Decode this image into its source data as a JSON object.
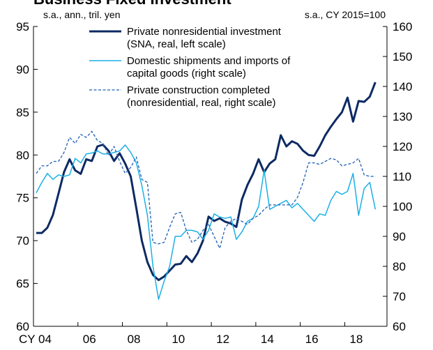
{
  "chart_data": {
    "type": "line",
    "title": "Business Fixed Investment",
    "y_label": "s.a., ann., tril. yen",
    "y2_label": "s.a., CY 2015=100",
    "x": [
      2004.125,
      2004.375,
      2004.625,
      2004.875,
      2005.125,
      2005.375,
      2005.625,
      2005.875,
      2006.125,
      2006.375,
      2006.625,
      2006.875,
      2007.125,
      2007.375,
      2007.625,
      2007.875,
      2008.125,
      2008.375,
      2008.625,
      2008.875,
      2009.125,
      2009.375,
      2009.625,
      2009.875,
      2010.125,
      2010.375,
      2010.625,
      2010.875,
      2011.125,
      2011.375,
      2011.625,
      2011.875,
      2012.125,
      2012.375,
      2012.625,
      2012.875,
      2013.125,
      2013.375,
      2013.625,
      2013.875,
      2014.125,
      2014.375,
      2014.625,
      2014.875,
      2015.125,
      2015.375,
      2015.625,
      2015.875,
      2016.125,
      2016.375,
      2016.625,
      2016.875,
      2017.125,
      2017.375,
      2017.625,
      2017.875,
      2018.125,
      2018.375,
      2018.625,
      2018.875,
      2019.125,
      2019.375
    ],
    "xlim": [
      2004.0,
      2019.9
    ],
    "xticks": [
      {
        "value": 2004,
        "label": "CY 04"
      },
      {
        "value": 2006,
        "label": "06"
      },
      {
        "value": 2008,
        "label": "08"
      },
      {
        "value": 2010,
        "label": "10"
      },
      {
        "value": 2012,
        "label": "12"
      },
      {
        "value": 2014,
        "label": "14"
      },
      {
        "value": 2016,
        "label": "16"
      },
      {
        "value": 2018,
        "label": "18"
      }
    ],
    "ylim": [
      60,
      95
    ],
    "yticks": [
      60,
      65,
      70,
      75,
      80,
      85,
      90,
      95
    ],
    "y2lim": [
      60,
      160
    ],
    "y2ticks": [
      60,
      70,
      80,
      90,
      100,
      110,
      120,
      130,
      140,
      150,
      160
    ],
    "series": [
      {
        "name": "Private nonresidential investment (SNA, real, left scale)",
        "color": "#0d2a63",
        "style": "solid",
        "width": 3,
        "values": [
          70.9,
          70.9,
          71.5,
          73,
          75.5,
          78,
          79.5,
          78.2,
          77.8,
          79.5,
          79.3,
          81,
          81.2,
          80.5,
          79.3,
          80.2,
          79,
          77.5,
          73.8,
          70,
          67.5,
          66,
          65.4,
          65.8,
          66.5,
          67.2,
          67.3,
          68.2,
          67.5,
          68.5,
          70,
          72.8,
          72.3,
          72.6,
          72.2,
          72,
          71.6,
          74.8,
          76.5,
          77.8,
          79.5,
          78,
          79,
          79.5,
          82.3,
          81,
          81.6,
          81.3,
          80.5,
          80,
          79.9,
          81,
          82.3,
          83.3,
          84.2,
          85,
          86.7,
          83.9,
          86.3,
          86.2,
          86.8,
          88.5
        ]
      },
      {
        "name": "Domestic shipments and imports of capital goods (right scale)",
        "color": "#1ab0e6",
        "style": "solid",
        "width": 1.5,
        "axis": "y2",
        "values": [
          104.5,
          108,
          111,
          109,
          110.5,
          110,
          110.5,
          116,
          114.5,
          117.5,
          117.8,
          118.5,
          117.5,
          117.5,
          118,
          118.5,
          120.5,
          118,
          114.5,
          107,
          97,
          80,
          69,
          75,
          80,
          90,
          90,
          92,
          92,
          91.5,
          89,
          92,
          97.5,
          96.5,
          96,
          96.5,
          89,
          91.5,
          95,
          96,
          100,
          112,
          99,
          100,
          101,
          102,
          99.5,
          101,
          99,
          97,
          95,
          97.5,
          97,
          102,
          105,
          104,
          105,
          111,
          97,
          106,
          108,
          99
        ]
      },
      {
        "name": "Private construction completed (nonresidential, real, right scale)",
        "color": "#1f5fb5",
        "style": "dashed",
        "width": 1.3,
        "axis": "y2",
        "values": [
          111,
          113.5,
          113.5,
          115,
          115,
          118,
          123,
          121,
          124,
          123,
          125,
          122,
          121,
          117,
          120,
          115,
          111,
          113,
          116.5,
          109,
          108,
          88,
          87.5,
          88,
          93,
          97.5,
          98,
          92,
          88,
          89,
          92,
          94,
          90,
          86,
          93,
          95,
          96,
          95,
          94,
          96,
          97,
          99,
          100.5,
          100.5,
          100.5,
          100.5,
          100.5,
          103,
          108,
          114.5,
          114.5,
          114,
          115,
          116,
          115.5,
          113.5,
          114,
          114.5,
          116,
          110.5,
          110,
          110
        ]
      }
    ]
  }
}
